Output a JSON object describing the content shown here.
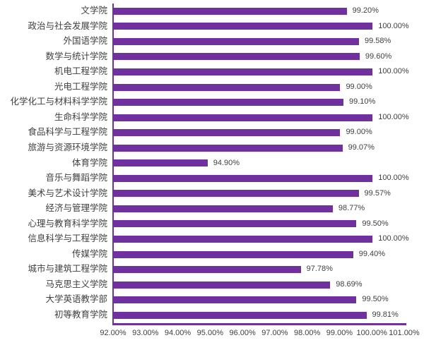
{
  "chart_data": {
    "type": "bar",
    "orientation": "horizontal",
    "title": "",
    "xlabel": "",
    "ylabel": "",
    "grid": "off",
    "legend": "none",
    "xlim": [
      92,
      101
    ],
    "xticks": [
      "92.00%",
      "93.00%",
      "94.00%",
      "95.00%",
      "96.00%",
      "97.00%",
      "98.00%",
      "99.00%",
      "100.00%",
      "101.00%"
    ],
    "categories": [
      "文学院",
      "政治与社会发展学院",
      "外国语学院",
      "数学与统计学院",
      "机电工程学院",
      "光电工程学院",
      "化学化工与材料科学学院",
      "生命科学学院",
      "食品科学与工程学院",
      "旅游与资源环境学院",
      "体育学院",
      "音乐与舞蹈学院",
      "美术与艺术设计学院",
      "经济与管理学院",
      "心理与教育科学学院",
      "信息科学与工程学院",
      "传媒学院",
      "城市与建筑工程学院",
      "马克思主义学院",
      "大学英语教学部",
      "初等教育学院"
    ],
    "values": [
      99.2,
      100.0,
      99.58,
      99.6,
      100.0,
      99.0,
      99.1,
      100.0,
      99.0,
      99.07,
      94.9,
      100.0,
      99.57,
      98.77,
      99.5,
      100.0,
      99.4,
      97.78,
      98.69,
      99.5,
      99.81
    ],
    "value_labels": [
      "99.20%",
      "100.00%",
      "99.58%",
      "99.60%",
      "100.00%",
      "99.00%",
      "99.10%",
      "100.00%",
      "99.00%",
      "99.07%",
      "94.90%",
      "100.00%",
      "99.57%",
      "98.77%",
      "99.50%",
      "100.00%",
      "99.40%",
      "97.78%",
      "98.69%",
      "99.50%",
      "99.81%"
    ],
    "colors": {
      "bar": "#7030A0",
      "axis": "#7030A0",
      "text": "#404040"
    }
  }
}
